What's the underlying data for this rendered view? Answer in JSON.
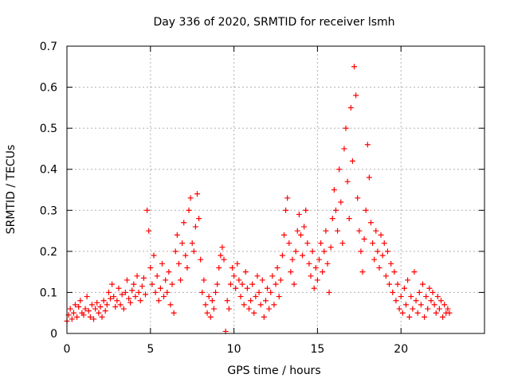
{
  "chart_data": {
    "type": "scatter",
    "title": "Day 336 of 2020, SRMTID for receiver lsmh",
    "xlabel": "GPS time / hours",
    "ylabel": "SRMTID / TECUs",
    "xlim": [
      0,
      25
    ],
    "ylim": [
      0,
      0.7
    ],
    "xticks": [
      0,
      5,
      10,
      15,
      20
    ],
    "xtick_labels": [
      "0",
      "5",
      "10",
      "15",
      "20"
    ],
    "yticks": [
      0,
      0.1,
      0.2,
      0.3,
      0.4,
      0.5,
      0.6,
      0.7
    ],
    "ytick_labels": [
      "0",
      "0.1",
      "0.2",
      "0.3",
      "0.4",
      "0.5",
      "0.6",
      "0.7"
    ],
    "grid": true,
    "marker": "+",
    "series": [
      {
        "name": "SRMTID",
        "color": "#ff0000",
        "points": [
          [
            0.0,
            0.03
          ],
          [
            0.1,
            0.045
          ],
          [
            0.2,
            0.06
          ],
          [
            0.3,
            0.035
          ],
          [
            0.4,
            0.05
          ],
          [
            0.5,
            0.07
          ],
          [
            0.6,
            0.04
          ],
          [
            0.7,
            0.065
          ],
          [
            0.8,
            0.08
          ],
          [
            0.9,
            0.05
          ],
          [
            1.0,
            0.045
          ],
          [
            1.1,
            0.06
          ],
          [
            1.2,
            0.09
          ],
          [
            1.3,
            0.055
          ],
          [
            1.4,
            0.04
          ],
          [
            1.5,
            0.07
          ],
          [
            1.6,
            0.035
          ],
          [
            1.7,
            0.06
          ],
          [
            1.8,
            0.075
          ],
          [
            1.9,
            0.05
          ],
          [
            2.0,
            0.065
          ],
          [
            2.1,
            0.04
          ],
          [
            2.2,
            0.08
          ],
          [
            2.3,
            0.055
          ],
          [
            2.4,
            0.07
          ],
          [
            2.5,
            0.1
          ],
          [
            2.6,
            0.085
          ],
          [
            2.7,
            0.12
          ],
          [
            2.8,
            0.09
          ],
          [
            2.9,
            0.065
          ],
          [
            3.0,
            0.08
          ],
          [
            3.1,
            0.11
          ],
          [
            3.2,
            0.07
          ],
          [
            3.3,
            0.095
          ],
          [
            3.4,
            0.06
          ],
          [
            3.5,
            0.1
          ],
          [
            3.6,
            0.13
          ],
          [
            3.7,
            0.085
          ],
          [
            3.8,
            0.075
          ],
          [
            3.9,
            0.105
          ],
          [
            4.0,
            0.12
          ],
          [
            4.1,
            0.09
          ],
          [
            4.2,
            0.14
          ],
          [
            4.3,
            0.1
          ],
          [
            4.4,
            0.08
          ],
          [
            4.5,
            0.115
          ],
          [
            4.6,
            0.135
          ],
          [
            4.7,
            0.095
          ],
          [
            4.8,
            0.3
          ],
          [
            4.9,
            0.25
          ],
          [
            5.0,
            0.16
          ],
          [
            5.1,
            0.12
          ],
          [
            5.2,
            0.19
          ],
          [
            5.3,
            0.1
          ],
          [
            5.4,
            0.14
          ],
          [
            5.5,
            0.08
          ],
          [
            5.6,
            0.11
          ],
          [
            5.7,
            0.17
          ],
          [
            5.8,
            0.09
          ],
          [
            5.9,
            0.13
          ],
          [
            6.0,
            0.1
          ],
          [
            6.1,
            0.15
          ],
          [
            6.2,
            0.07
          ],
          [
            6.3,
            0.12
          ],
          [
            6.4,
            0.05
          ],
          [
            6.5,
            0.2
          ],
          [
            6.6,
            0.24
          ],
          [
            6.7,
            0.17
          ],
          [
            6.8,
            0.13
          ],
          [
            6.9,
            0.22
          ],
          [
            7.0,
            0.27
          ],
          [
            7.1,
            0.19
          ],
          [
            7.2,
            0.16
          ],
          [
            7.3,
            0.3
          ],
          [
            7.4,
            0.33
          ],
          [
            7.5,
            0.22
          ],
          [
            7.6,
            0.2
          ],
          [
            7.7,
            0.26
          ],
          [
            7.8,
            0.34
          ],
          [
            7.9,
            0.28
          ],
          [
            8.0,
            0.18
          ],
          [
            8.1,
            0.1
          ],
          [
            8.2,
            0.13
          ],
          [
            8.3,
            0.07
          ],
          [
            8.4,
            0.05
          ],
          [
            8.5,
            0.09
          ],
          [
            8.6,
            0.04
          ],
          [
            8.7,
            0.08
          ],
          [
            8.8,
            0.06
          ],
          [
            8.9,
            0.1
          ],
          [
            9.0,
            0.12
          ],
          [
            9.1,
            0.16
          ],
          [
            9.2,
            0.19
          ],
          [
            9.3,
            0.21
          ],
          [
            9.4,
            0.18
          ],
          [
            9.5,
            0.005
          ],
          [
            9.6,
            0.08
          ],
          [
            9.7,
            0.06
          ],
          [
            9.8,
            0.12
          ],
          [
            9.9,
            0.16
          ],
          [
            10.0,
            0.14
          ],
          [
            10.1,
            0.11
          ],
          [
            10.2,
            0.17
          ],
          [
            10.3,
            0.13
          ],
          [
            10.4,
            0.09
          ],
          [
            10.5,
            0.12
          ],
          [
            10.6,
            0.07
          ],
          [
            10.7,
            0.15
          ],
          [
            10.8,
            0.11
          ],
          [
            10.9,
            0.06
          ],
          [
            11.0,
            0.08
          ],
          [
            11.1,
            0.12
          ],
          [
            11.2,
            0.05
          ],
          [
            11.3,
            0.09
          ],
          [
            11.4,
            0.14
          ],
          [
            11.5,
            0.1
          ],
          [
            11.6,
            0.07
          ],
          [
            11.7,
            0.13
          ],
          [
            11.8,
            0.04
          ],
          [
            11.9,
            0.08
          ],
          [
            12.0,
            0.11
          ],
          [
            12.1,
            0.06
          ],
          [
            12.2,
            0.1
          ],
          [
            12.3,
            0.14
          ],
          [
            12.4,
            0.07
          ],
          [
            12.5,
            0.12
          ],
          [
            12.6,
            0.16
          ],
          [
            12.7,
            0.09
          ],
          [
            12.8,
            0.13
          ],
          [
            12.9,
            0.19
          ],
          [
            13.0,
            0.24
          ],
          [
            13.1,
            0.3
          ],
          [
            13.2,
            0.33
          ],
          [
            13.3,
            0.22
          ],
          [
            13.4,
            0.15
          ],
          [
            13.5,
            0.18
          ],
          [
            13.6,
            0.12
          ],
          [
            13.7,
            0.2
          ],
          [
            13.8,
            0.25
          ],
          [
            13.9,
            0.29
          ],
          [
            14.0,
            0.24
          ],
          [
            14.1,
            0.19
          ],
          [
            14.2,
            0.26
          ],
          [
            14.3,
            0.3
          ],
          [
            14.4,
            0.22
          ],
          [
            14.5,
            0.17
          ],
          [
            14.6,
            0.14
          ],
          [
            14.7,
            0.2
          ],
          [
            14.8,
            0.11
          ],
          [
            14.9,
            0.16
          ],
          [
            15.0,
            0.13
          ],
          [
            15.1,
            0.18
          ],
          [
            15.2,
            0.22
          ],
          [
            15.3,
            0.15
          ],
          [
            15.4,
            0.2
          ],
          [
            15.5,
            0.25
          ],
          [
            15.6,
            0.17
          ],
          [
            15.7,
            0.1
          ],
          [
            15.8,
            0.21
          ],
          [
            15.9,
            0.28
          ],
          [
            16.0,
            0.35
          ],
          [
            16.1,
            0.3
          ],
          [
            16.2,
            0.25
          ],
          [
            16.3,
            0.4
          ],
          [
            16.4,
            0.32
          ],
          [
            16.5,
            0.22
          ],
          [
            16.6,
            0.45
          ],
          [
            16.7,
            0.5
          ],
          [
            16.8,
            0.37
          ],
          [
            16.9,
            0.28
          ],
          [
            17.0,
            0.55
          ],
          [
            17.1,
            0.42
          ],
          [
            17.2,
            0.65
          ],
          [
            17.3,
            0.58
          ],
          [
            17.4,
            0.33
          ],
          [
            17.5,
            0.25
          ],
          [
            17.6,
            0.2
          ],
          [
            17.7,
            0.15
          ],
          [
            17.8,
            0.23
          ],
          [
            17.9,
            0.3
          ],
          [
            18.0,
            0.46
          ],
          [
            18.1,
            0.38
          ],
          [
            18.2,
            0.27
          ],
          [
            18.3,
            0.22
          ],
          [
            18.4,
            0.18
          ],
          [
            18.5,
            0.25
          ],
          [
            18.6,
            0.2
          ],
          [
            18.7,
            0.16
          ],
          [
            18.8,
            0.24
          ],
          [
            18.9,
            0.19
          ],
          [
            19.0,
            0.22
          ],
          [
            19.1,
            0.14
          ],
          [
            19.2,
            0.2
          ],
          [
            19.3,
            0.12
          ],
          [
            19.4,
            0.17
          ],
          [
            19.5,
            0.1
          ],
          [
            19.6,
            0.15
          ],
          [
            19.7,
            0.08
          ],
          [
            19.8,
            0.12
          ],
          [
            19.9,
            0.06
          ],
          [
            20.0,
            0.09
          ],
          [
            20.1,
            0.05
          ],
          [
            20.2,
            0.11
          ],
          [
            20.3,
            0.07
          ],
          [
            20.4,
            0.13
          ],
          [
            20.5,
            0.04
          ],
          [
            20.6,
            0.09
          ],
          [
            20.7,
            0.06
          ],
          [
            20.8,
            0.15
          ],
          [
            20.9,
            0.08
          ],
          [
            21.0,
            0.05
          ],
          [
            21.1,
            0.1
          ],
          [
            21.2,
            0.07
          ],
          [
            21.3,
            0.12
          ],
          [
            21.4,
            0.04
          ],
          [
            21.5,
            0.09
          ],
          [
            21.6,
            0.06
          ],
          [
            21.7,
            0.11
          ],
          [
            21.8,
            0.08
          ],
          [
            21.9,
            0.1
          ],
          [
            22.0,
            0.07
          ],
          [
            22.1,
            0.05
          ],
          [
            22.2,
            0.09
          ],
          [
            22.3,
            0.06
          ],
          [
            22.4,
            0.08
          ],
          [
            22.5,
            0.04
          ],
          [
            22.6,
            0.07
          ],
          [
            22.7,
            0.05
          ],
          [
            22.8,
            0.06
          ],
          [
            22.9,
            0.05
          ]
        ]
      }
    ]
  }
}
